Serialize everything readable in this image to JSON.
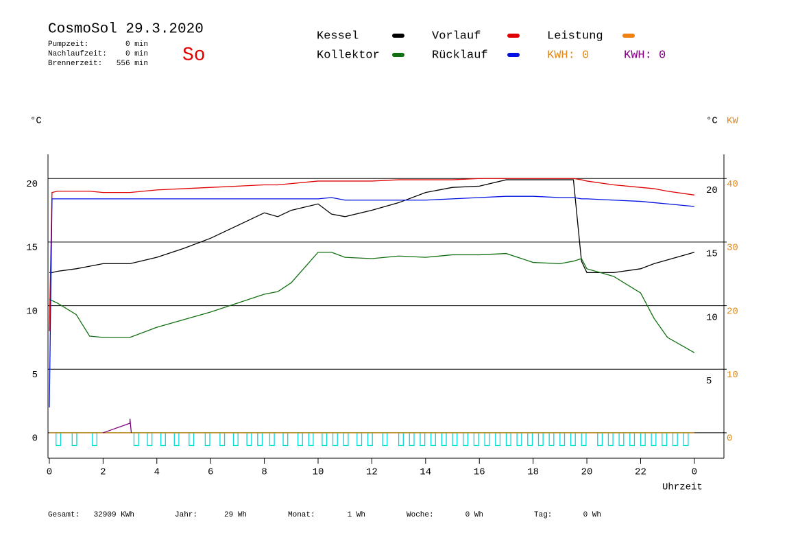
{
  "chart_data": {
    "type": "line",
    "title": "CosmoSol 29.3.2020",
    "day": "So",
    "stats": [
      {
        "label": "Pumpzeit:",
        "value": "0 min"
      },
      {
        "label": "Nachlaufzeit:",
        "value": "0 min"
      },
      {
        "label": "Brennerzeit:",
        "value": "556 min"
      }
    ],
    "kwh_labels": [
      {
        "text": "KWH: 0",
        "color": "#e08a1e"
      },
      {
        "text": "KWH: 0",
        "color": "#800080"
      }
    ],
    "y_unit": "°C",
    "y2_unit_c": "°C",
    "y2_unit": "KW",
    "x_label": "Uhrzeit",
    "footer": [
      {
        "label": "Gesamt:",
        "value": "32909 KWh"
      },
      {
        "label": "Jahr:",
        "value": "29 Wh"
      },
      {
        "label": "Monat:",
        "value": "1 Wh"
      },
      {
        "label": "Woche:",
        "value": "0 Wh"
      },
      {
        "label": "Tag:",
        "value": "0 Wh"
      }
    ],
    "xlim": [
      -0.05,
      25.1
    ],
    "xticks": [
      0,
      2,
      4,
      6,
      8,
      10,
      12,
      14,
      16,
      18,
      20,
      22,
      {
        "value": 24,
        "label": "0"
      }
    ],
    "ylim": [
      -2,
      21.9
    ],
    "yticks": [
      0,
      5,
      10,
      15,
      20
    ],
    "y2lim": [
      -4,
      43.8
    ],
    "y2ticks": [
      0,
      10,
      20,
      30,
      40
    ],
    "grid": true,
    "x": [
      0,
      0.1,
      0.3,
      1,
      1.5,
      2,
      3,
      4,
      5,
      6,
      7,
      8,
      8.5,
      9,
      10,
      10.5,
      11,
      12,
      13,
      14,
      15,
      16,
      17,
      18,
      19,
      19.5,
      19.8,
      20,
      21,
      22,
      22.5,
      23,
      24
    ],
    "series": [
      {
        "name": "Kessel",
        "color": "#000000",
        "values": [
          12.6,
          12.6,
          12.7,
          12.9,
          13.1,
          13.3,
          13.3,
          13.8,
          14.5,
          15.3,
          16.3,
          17.3,
          17.0,
          17.5,
          18.0,
          17.2,
          17.0,
          17.5,
          18.1,
          18.9,
          19.3,
          19.4,
          19.9,
          19.9,
          19.9,
          19.9,
          13.5,
          12.6,
          12.6,
          12.9,
          13.3,
          13.6,
          14.2
        ]
      },
      {
        "name": "Vorlauf",
        "color": "#e00000",
        "values": [
          8.0,
          18.9,
          19.0,
          19.0,
          19.0,
          18.9,
          18.9,
          19.1,
          19.2,
          19.3,
          19.4,
          19.5,
          19.5,
          19.6,
          19.8,
          19.8,
          19.8,
          19.8,
          19.9,
          19.9,
          19.9,
          20.0,
          20.0,
          20.0,
          20.0,
          20.0,
          19.9,
          19.8,
          19.5,
          19.3,
          19.2,
          19.0,
          18.7
        ]
      },
      {
        "name": "Leistung",
        "color": "#f08010",
        "axis": "y2",
        "values": [
          0,
          0,
          0,
          0,
          0,
          0,
          0,
          0,
          0,
          0,
          0,
          0,
          0,
          0,
          0,
          0,
          0,
          0,
          0,
          0,
          0,
          0,
          0,
          0,
          0,
          0,
          0,
          0,
          0,
          0,
          0,
          0,
          0
        ]
      },
      {
        "name": "Kollektor",
        "color": "#107010",
        "values": [
          10.5,
          10.4,
          10.2,
          9.3,
          7.6,
          7.5,
          7.5,
          8.3,
          8.9,
          9.5,
          10.2,
          10.9,
          11.1,
          11.8,
          14.2,
          14.2,
          13.8,
          13.7,
          13.9,
          13.8,
          14.0,
          14.0,
          14.1,
          13.4,
          13.3,
          13.5,
          13.7,
          12.9,
          12.3,
          11.0,
          9.0,
          7.5,
          6.3
        ]
      },
      {
        "name": "Rücklauf",
        "color": "#0010e0",
        "values": [
          2.0,
          18.4,
          18.4,
          18.4,
          18.4,
          18.4,
          18.4,
          18.4,
          18.4,
          18.4,
          18.4,
          18.4,
          18.4,
          18.4,
          18.4,
          18.5,
          18.3,
          18.3,
          18.3,
          18.3,
          18.4,
          18.5,
          18.6,
          18.6,
          18.5,
          18.5,
          18.4,
          18.4,
          18.3,
          18.2,
          18.1,
          18.0,
          17.8
        ]
      }
    ],
    "power": {
      "color": "#800080",
      "axis": "y2",
      "x": [
        2,
        3,
        3,
        3.05
      ],
      "values": [
        0,
        1.5,
        2.2,
        0
      ]
    },
    "pump": {
      "color": "#00dcdc",
      "base": 0,
      "low": -1,
      "width": 0.17,
      "starts": [
        0.25,
        0.85,
        1.6,
        3.15,
        3.65,
        4.15,
        4.65,
        5.2,
        5.8,
        6.35,
        6.85,
        7.35,
        7.75,
        8.2,
        8.7,
        9.25,
        9.65,
        10.15,
        10.55,
        10.95,
        11.45,
        11.85,
        12.4,
        13.0,
        13.4,
        13.8,
        14.2,
        14.6,
        15.0,
        15.4,
        15.8,
        16.2,
        16.6,
        17.0,
        17.4,
        17.8,
        18.2,
        18.6,
        19.0,
        19.4,
        19.8,
        20.4,
        20.8,
        21.2,
        21.6,
        22.0,
        22.4,
        22.8,
        23.2,
        23.6
      ]
    }
  }
}
